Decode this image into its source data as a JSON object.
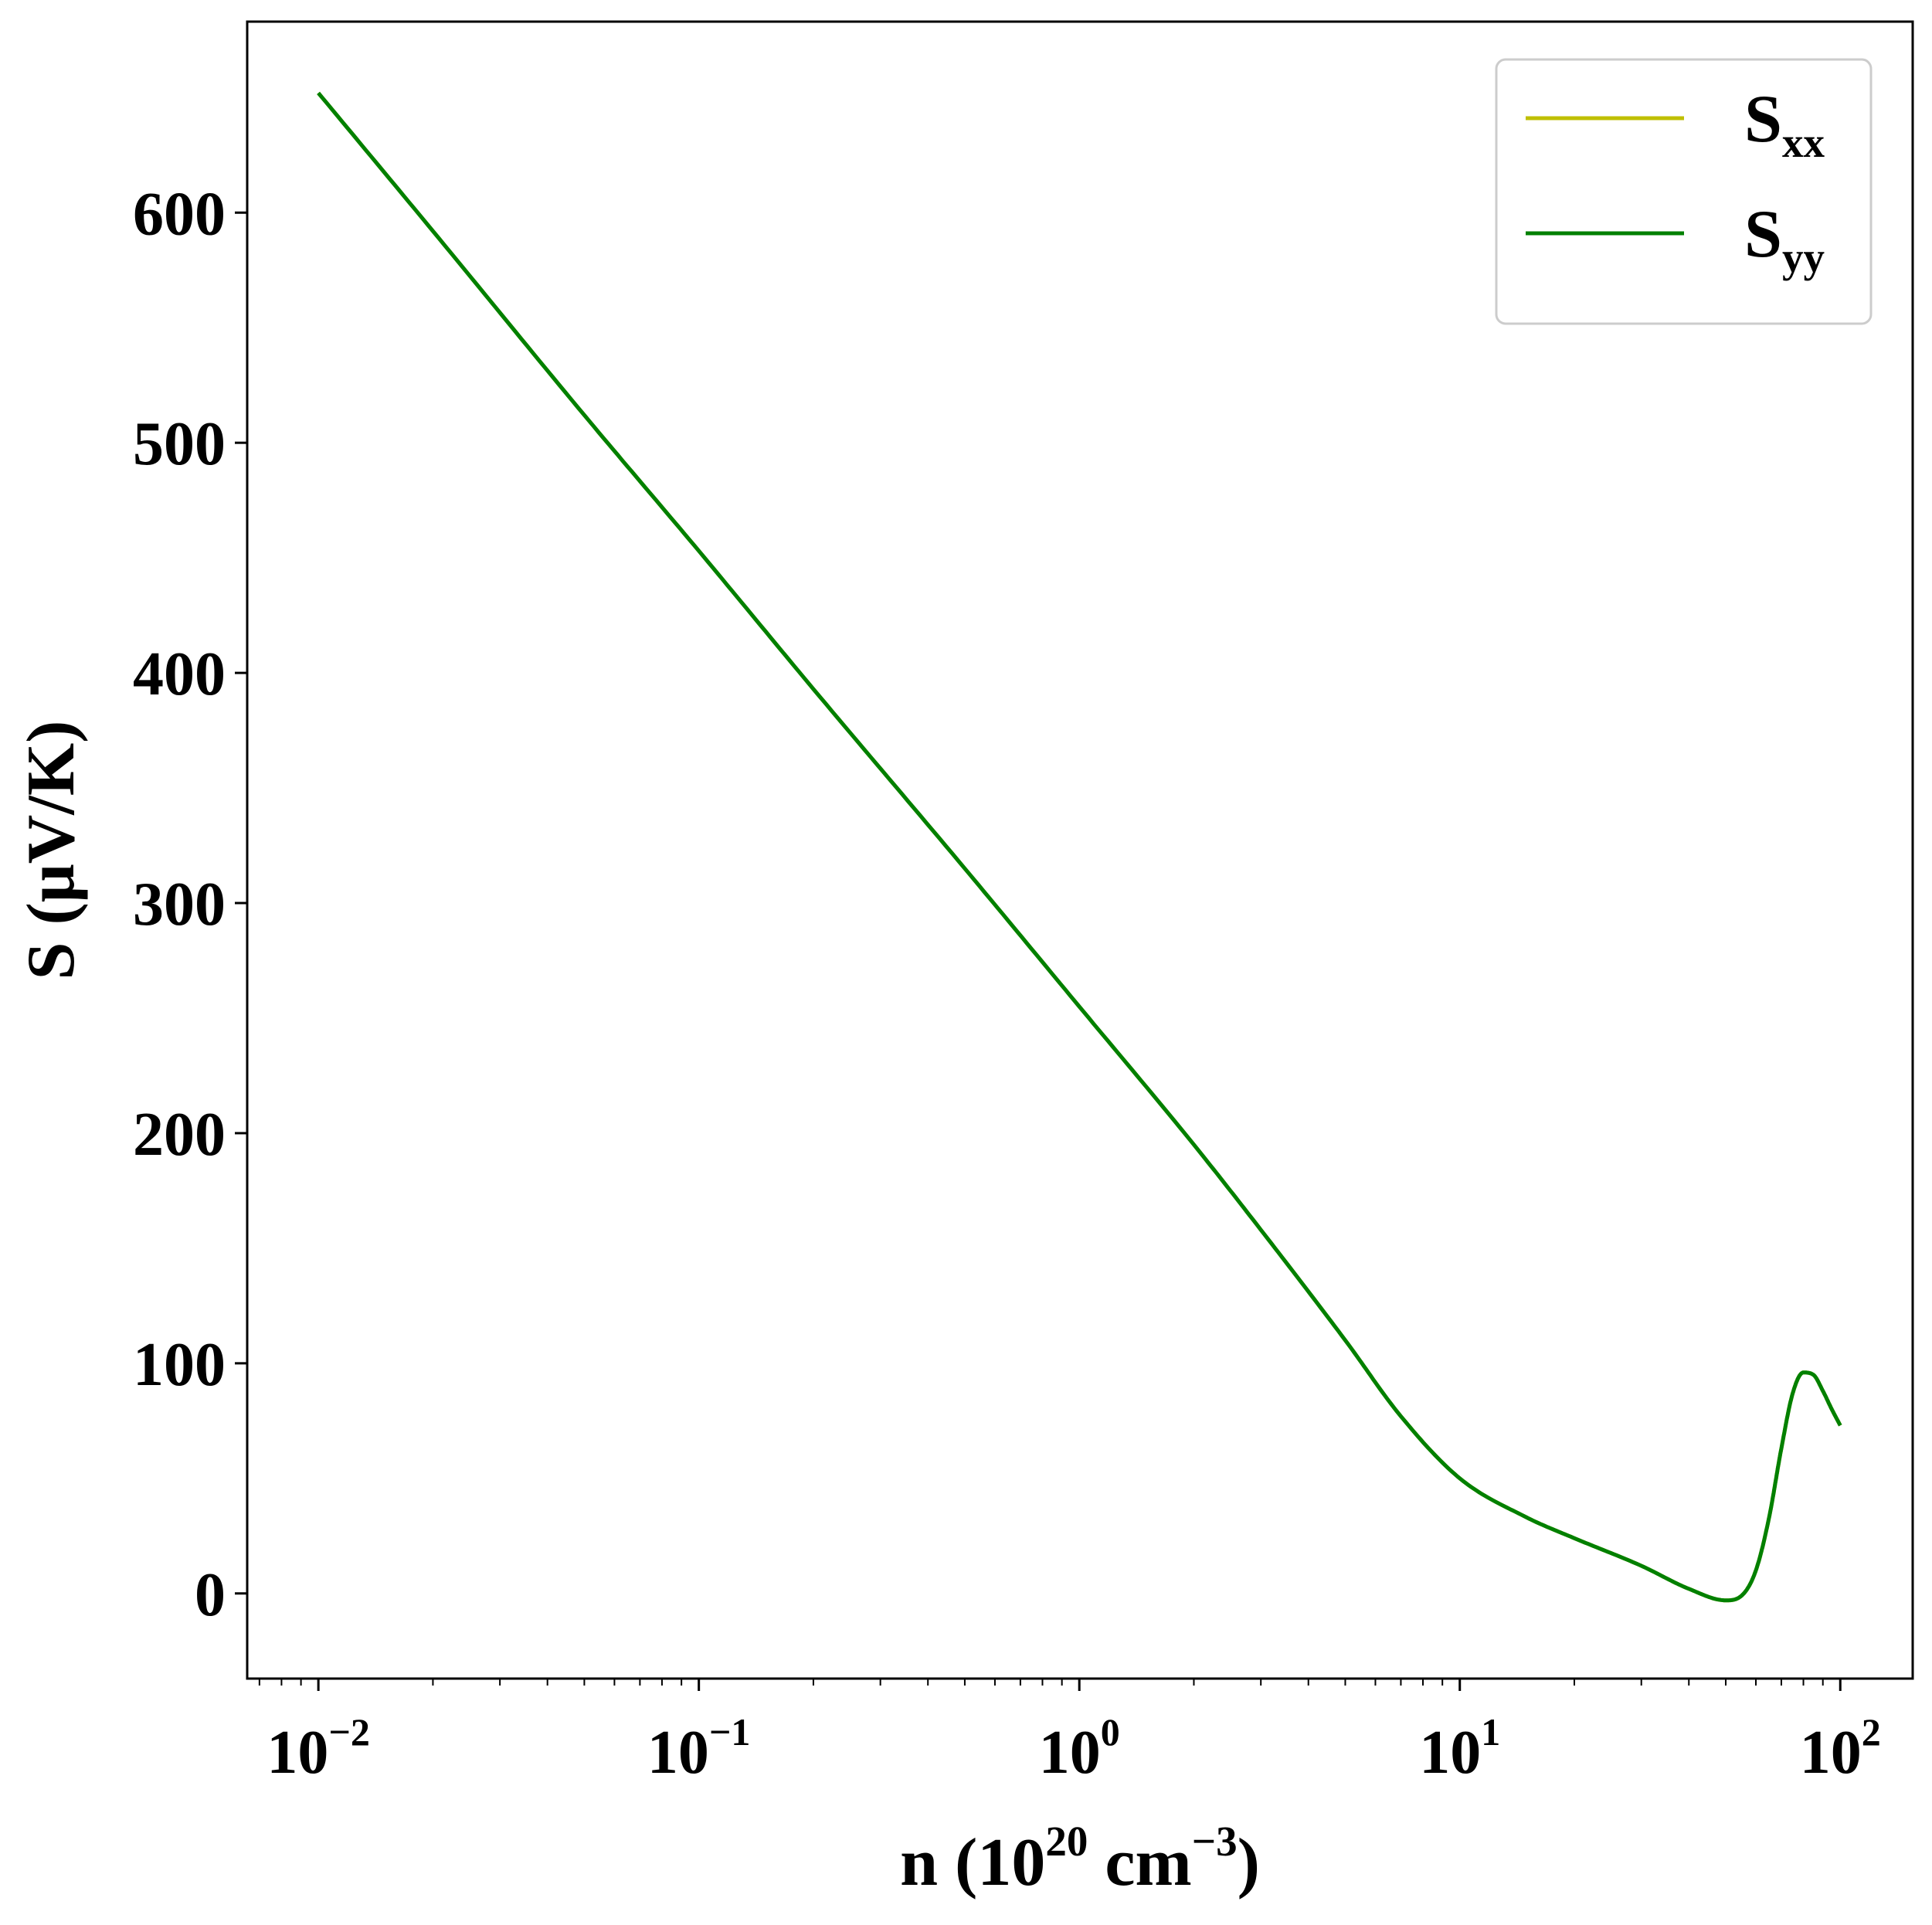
{
  "colors": {
    "Sxx": "#bfbf00",
    "Syy": "#008000",
    "axes": "#000000",
    "legend_border": "#cccccc"
  },
  "chart_data": {
    "type": "line",
    "xscale": "log",
    "xlabel": {
      "prefix": "n (10",
      "exp": "20",
      "mid": " cm",
      "exp2": "−3",
      "suffix": ")"
    },
    "ylabel": "S (μV/K)",
    "xlim": [
      0.0065,
      155
    ],
    "ylim": [
      -37,
      683
    ],
    "grid": false,
    "legend_position": "upper right",
    "x_ticks": [
      {
        "value": 0.01,
        "base": "10",
        "exp": "−2"
      },
      {
        "value": 0.1,
        "base": "10",
        "exp": "−1"
      },
      {
        "value": 1,
        "base": "10",
        "exp": "0"
      },
      {
        "value": 10,
        "base": "10",
        "exp": "1"
      },
      {
        "value": 100,
        "base": "10",
        "exp": "2"
      }
    ],
    "y_ticks": [
      0,
      100,
      200,
      300,
      400,
      500,
      600
    ],
    "series": [
      {
        "name": "S",
        "sub": "xx",
        "color": "#bfbf00",
        "x": [
          0.01,
          0.02,
          0.05,
          0.1,
          0.2,
          0.5,
          1,
          2,
          3,
          5,
          7,
          10,
          15,
          20,
          30,
          40,
          50,
          55,
          60,
          65,
          70,
          75,
          80,
          85,
          90,
          95,
          100
        ],
        "y": [
          652,
          592,
          512,
          453,
          393,
          315,
          255,
          195,
          158,
          110,
          77,
          50,
          33,
          24,
          12,
          2,
          -3,
          -1,
          10,
          33,
          63,
          87,
          96,
          95,
          88,
          80,
          73
        ]
      },
      {
        "name": "S",
        "sub": "yy",
        "color": "#008000",
        "x": [
          0.01,
          0.02,
          0.05,
          0.1,
          0.2,
          0.5,
          1,
          2,
          3,
          5,
          7,
          10,
          15,
          20,
          30,
          40,
          50,
          55,
          60,
          65,
          70,
          75,
          80,
          85,
          90,
          95,
          100
        ],
        "y": [
          652,
          592,
          512,
          453,
          393,
          315,
          255,
          195,
          158,
          110,
          77,
          50,
          33,
          24,
          12,
          2,
          -3,
          -1,
          10,
          33,
          63,
          87,
          96,
          95,
          88,
          80,
          73
        ]
      }
    ]
  }
}
